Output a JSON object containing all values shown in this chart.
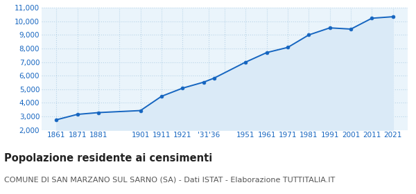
{
  "years": [
    1861,
    1871,
    1881,
    1901,
    1911,
    1921,
    1931,
    1936,
    1951,
    1961,
    1971,
    1981,
    1991,
    2001,
    2011,
    2021
  ],
  "population": [
    2750,
    3150,
    3280,
    3430,
    4480,
    5080,
    5520,
    5820,
    7000,
    7700,
    8080,
    9000,
    9520,
    9430,
    10230,
    10340
  ],
  "x_tick_labels": [
    "1861",
    "1871",
    "1881",
    "",
    "1901",
    "1911",
    "1921",
    "'31'36",
    "",
    "1951",
    "1961",
    "1971",
    "1981",
    "1991",
    "2001",
    "2011",
    "2021"
  ],
  "x_tick_positions": [
    1861,
    1871,
    1881,
    1891,
    1901,
    1911,
    1921,
    1933.5,
    1941,
    1951,
    1961,
    1971,
    1981,
    1991,
    2001,
    2011,
    2021
  ],
  "ylim": [
    2000,
    11000
  ],
  "yticks": [
    2000,
    3000,
    4000,
    5000,
    6000,
    7000,
    8000,
    9000,
    10000,
    11000
  ],
  "xlim_left": 1854,
  "xlim_right": 2028,
  "line_color": "#1565c0",
  "fill_color": "#daeaf7",
  "marker_color": "#1565c0",
  "bg_color": "#eaf4fb",
  "grid_color": "#b8d4e8",
  "title": "Popolazione residente ai censimenti",
  "subtitle": "COMUNE DI SAN MARZANO SUL SARNO (SA) - Dati ISTAT - Elaborazione TUTTITALIA.IT",
  "title_fontsize": 10.5,
  "subtitle_fontsize": 8,
  "tick_label_color": "#1565c0",
  "tick_fontsize": 7.5
}
